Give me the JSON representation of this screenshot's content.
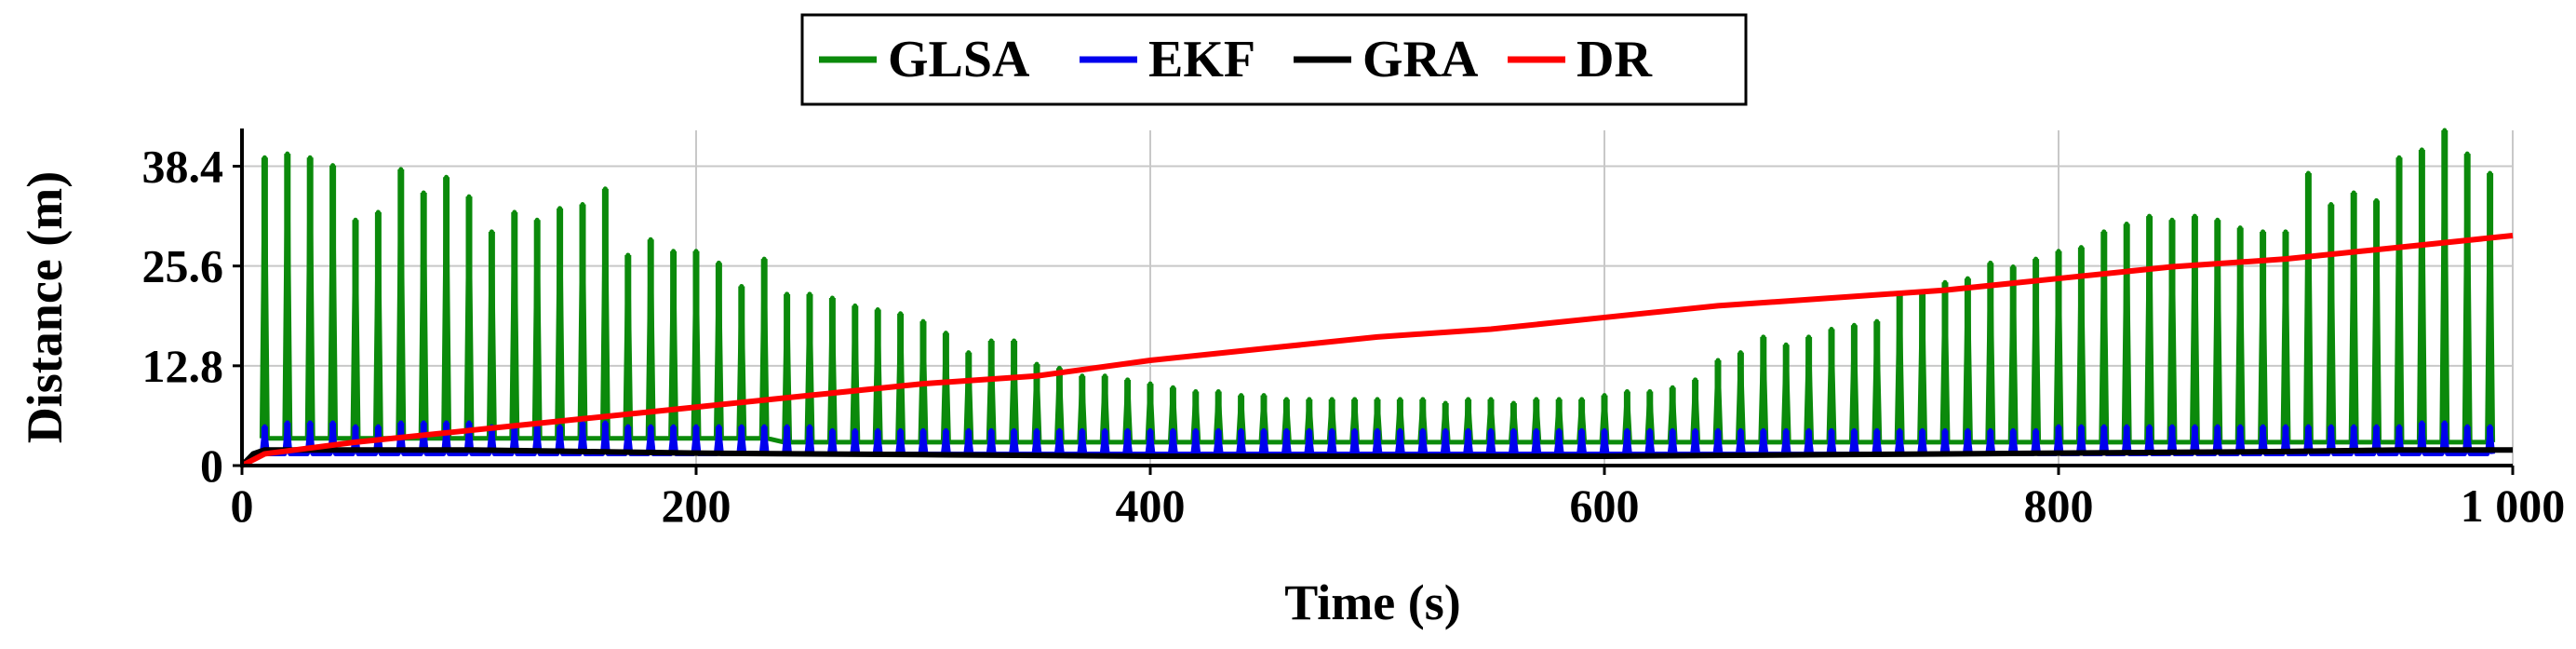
{
  "chart_data": {
    "type": "line",
    "xlabel": "Time (s)",
    "ylabel": "Distance (m)",
    "xlim": [
      0,
      1000
    ],
    "ylim": [
      0,
      43
    ],
    "xticks": [
      0,
      200,
      400,
      600,
      800,
      1000
    ],
    "xtick_labels": [
      "0",
      "200",
      "400",
      "600",
      "800",
      "1 000"
    ],
    "yticks": [
      0,
      12.8,
      25.6,
      38.4
    ],
    "ytick_labels": [
      "0",
      "12.8",
      "25.6",
      "38.4"
    ],
    "grid": true,
    "legend": "top-center",
    "series": [
      {
        "name": "GLSA",
        "color": "#0b8a0b",
        "style": "spikes",
        "x": [
          10,
          20,
          30,
          40,
          50,
          60,
          70,
          80,
          90,
          100,
          110,
          120,
          130,
          140,
          150,
          160,
          170,
          180,
          190,
          200,
          210,
          220,
          230,
          240,
          250,
          260,
          270,
          280,
          290,
          300,
          310,
          320,
          330,
          340,
          350,
          360,
          370,
          380,
          390,
          400,
          410,
          420,
          430,
          440,
          450,
          460,
          470,
          480,
          490,
          500,
          510,
          520,
          530,
          540,
          550,
          560,
          570,
          580,
          590,
          600,
          610,
          620,
          630,
          640,
          650,
          660,
          670,
          680,
          690,
          700,
          710,
          720,
          730,
          740,
          750,
          760,
          770,
          780,
          790,
          800,
          810,
          820,
          830,
          840,
          850,
          860,
          870,
          880,
          890,
          900,
          910,
          920,
          930,
          940,
          950,
          960,
          970,
          980,
          990
        ],
        "peaks": [
          39.5,
          40.0,
          39.5,
          38.5,
          31.5,
          32.5,
          38.0,
          35.0,
          37.0,
          34.5,
          30.0,
          32.5,
          31.5,
          33.0,
          33.5,
          35.5,
          27.0,
          29.0,
          27.5,
          27.5,
          26.0,
          23.0,
          26.5,
          22.0,
          22.0,
          21.5,
          20.5,
          20.0,
          19.5,
          18.5,
          17.0,
          14.5,
          16.0,
          16.0,
          13.0,
          12.5,
          11.5,
          11.5,
          11.0,
          10.5,
          10.0,
          9.5,
          9.5,
          9.0,
          9.0,
          8.5,
          8.5,
          8.5,
          8.5,
          8.5,
          8.5,
          8.5,
          8.0,
          8.5,
          8.5,
          8.0,
          8.5,
          8.5,
          8.5,
          9.0,
          9.5,
          9.5,
          10.0,
          11.0,
          13.5,
          14.5,
          16.5,
          15.5,
          16.5,
          17.5,
          18.0,
          18.5,
          22.0,
          22.0,
          23.5,
          24.0,
          26.0,
          25.5,
          26.5,
          27.5,
          28.0,
          30.0,
          31.0,
          32.0,
          31.5,
          32.0,
          31.5,
          30.5,
          30.0,
          30.0,
          37.5,
          33.5,
          35.0,
          34.0,
          39.5,
          40.5,
          43.0,
          40.0,
          37.5
        ],
        "floor": [
          3.5,
          3.5,
          3.5,
          3.5,
          3.5,
          3.5,
          3.5,
          3.5,
          3.5,
          3.5,
          3.5,
          3.5,
          3.5,
          3.5,
          3.5,
          3.5,
          3.5,
          3.5,
          3.5,
          3.5,
          3.5,
          3.5,
          3.5,
          3.0,
          3.0,
          3.0,
          3.0,
          3.0,
          3.0,
          3.0,
          3.0,
          3.0,
          3.0,
          3.0,
          3.0,
          3.0,
          3.0,
          3.0,
          3.0,
          3.0,
          3.0,
          3.0,
          3.0,
          3.0,
          3.0,
          3.0,
          3.0,
          3.0,
          3.0,
          3.0,
          3.0,
          3.0,
          3.0,
          3.0,
          3.0,
          3.0,
          3.0,
          3.0,
          3.0,
          3.0,
          3.0,
          3.0,
          3.0,
          3.0,
          3.0,
          3.0,
          3.0,
          3.0,
          3.0,
          3.0,
          3.0,
          3.0,
          3.0,
          3.0,
          3.0,
          3.0,
          3.0,
          3.0,
          3.0,
          3.0,
          3.0,
          3.0,
          3.0,
          3.0,
          3.0,
          3.0,
          3.0,
          3.0,
          3.0,
          3.0,
          3.0,
          3.0,
          3.0,
          3.0,
          3.0,
          3.0,
          3.0,
          3.0,
          3.0
        ]
      },
      {
        "name": "EKF",
        "color": "#0000ee",
        "style": "spikes",
        "x": [
          10,
          20,
          30,
          40,
          50,
          60,
          70,
          80,
          90,
          100,
          110,
          120,
          130,
          140,
          150,
          160,
          170,
          180,
          190,
          200,
          210,
          220,
          230,
          240,
          250,
          260,
          270,
          280,
          290,
          300,
          310,
          320,
          330,
          340,
          350,
          360,
          370,
          380,
          390,
          400,
          410,
          420,
          430,
          440,
          450,
          460,
          470,
          480,
          490,
          500,
          510,
          520,
          530,
          540,
          550,
          560,
          570,
          580,
          590,
          600,
          610,
          620,
          630,
          640,
          650,
          660,
          670,
          680,
          690,
          700,
          710,
          720,
          730,
          740,
          750,
          760,
          770,
          780,
          790,
          800,
          810,
          820,
          830,
          840,
          850,
          860,
          870,
          880,
          890,
          900,
          910,
          920,
          930,
          940,
          950,
          960,
          970,
          980,
          990
        ],
        "peaks": [
          5.0,
          5.5,
          5.5,
          5.5,
          5.0,
          5.0,
          5.5,
          5.5,
          5.5,
          5.5,
          5.0,
          5.0,
          5.0,
          5.0,
          5.5,
          5.5,
          5.0,
          5.0,
          5.0,
          5.0,
          5.0,
          5.0,
          5.0,
          5.0,
          5.0,
          4.5,
          4.5,
          4.5,
          4.5,
          4.5,
          4.5,
          4.5,
          4.5,
          4.5,
          4.5,
          4.5,
          4.5,
          4.5,
          4.5,
          4.5,
          4.5,
          4.5,
          4.5,
          4.5,
          4.5,
          4.5,
          4.5,
          4.5,
          4.5,
          4.5,
          4.5,
          4.5,
          4.5,
          4.5,
          4.5,
          4.5,
          4.5,
          4.5,
          4.5,
          4.5,
          4.5,
          4.5,
          4.5,
          4.5,
          4.5,
          4.5,
          4.5,
          4.5,
          4.5,
          4.5,
          4.5,
          4.5,
          4.5,
          4.5,
          4.5,
          4.5,
          4.5,
          4.5,
          4.5,
          5.0,
          5.0,
          5.0,
          5.0,
          5.0,
          5.0,
          5.0,
          5.0,
          5.0,
          5.0,
          5.0,
          5.0,
          5.0,
          5.0,
          5.0,
          5.0,
          5.5,
          5.5,
          5.0,
          5.0
        ],
        "floor": [
          1.5,
          1.5,
          1.5,
          1.5,
          1.5,
          1.5,
          1.5,
          1.5,
          1.5,
          1.5,
          1.5,
          1.5,
          1.5,
          1.5,
          1.5,
          1.5,
          1.5,
          1.5,
          1.5,
          1.5,
          1.5,
          1.5,
          1.5,
          1.5,
          1.5,
          1.5,
          1.5,
          1.5,
          1.5,
          1.5,
          1.5,
          1.5,
          1.5,
          1.5,
          1.5,
          1.5,
          1.5,
          1.5,
          1.5,
          1.5,
          1.5,
          1.5,
          1.5,
          1.5,
          1.5,
          1.5,
          1.5,
          1.5,
          1.5,
          1.5,
          1.5,
          1.5,
          1.5,
          1.5,
          1.5,
          1.5,
          1.5,
          1.5,
          1.5,
          1.5,
          1.5,
          1.5,
          1.5,
          1.5,
          1.5,
          1.5,
          1.5,
          1.5,
          1.5,
          1.5,
          1.5,
          1.5,
          1.5,
          1.5,
          1.5,
          1.5,
          1.5,
          1.5,
          1.5,
          1.5,
          1.5,
          1.5,
          1.5,
          1.5,
          1.5,
          1.5,
          1.5,
          1.5,
          1.5,
          1.5,
          1.5,
          1.5,
          1.5,
          1.5,
          1.5,
          1.5,
          1.5,
          1.5,
          1.5
        ]
      },
      {
        "name": "GRA",
        "color": "#000000",
        "style": "line",
        "x": [
          0,
          5,
          10,
          20,
          50,
          100,
          150,
          200,
          250,
          300,
          350,
          400,
          450,
          500,
          550,
          600,
          650,
          700,
          750,
          800,
          850,
          900,
          950,
          1000
        ],
        "y": [
          0.0,
          1.5,
          2.0,
          2.0,
          2.0,
          2.0,
          1.8,
          1.6,
          1.5,
          1.4,
          1.3,
          1.2,
          1.2,
          1.2,
          1.2,
          1.2,
          1.3,
          1.4,
          1.5,
          1.6,
          1.7,
          1.8,
          2.0,
          2.0
        ]
      },
      {
        "name": "DR",
        "color": "#ff0000",
        "style": "line",
        "x": [
          0,
          10,
          50,
          100,
          150,
          200,
          250,
          300,
          350,
          400,
          450,
          500,
          550,
          600,
          650,
          700,
          750,
          800,
          850,
          900,
          950,
          1000
        ],
        "y": [
          0.0,
          1.5,
          3.0,
          4.5,
          6.0,
          7.5,
          9.0,
          10.5,
          11.5,
          13.5,
          15.0,
          16.5,
          17.5,
          19.0,
          20.5,
          21.5,
          22.5,
          24.0,
          25.5,
          26.5,
          28.0,
          29.5
        ]
      }
    ]
  }
}
